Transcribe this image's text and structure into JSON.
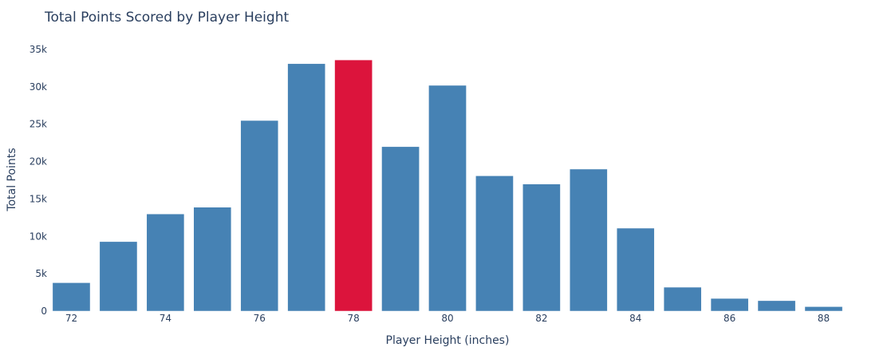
{
  "chart_data": {
    "type": "bar",
    "title": "Total Points Scored by Player Height",
    "xlabel": "Player Height (inches)",
    "ylabel": "Total Points",
    "x": [
      72,
      73,
      74,
      75,
      76,
      77,
      78,
      79,
      80,
      81,
      82,
      83,
      84,
      85,
      86,
      87,
      88
    ],
    "values": [
      3800,
      9300,
      13000,
      13900,
      25500,
      33100,
      33600,
      22000,
      30200,
      18100,
      17000,
      19000,
      11100,
      3200,
      1700,
      1400,
      600
    ],
    "highlight_x": 78,
    "ylim": [
      0,
      35000
    ],
    "y_ticks": [
      0,
      5000,
      10000,
      15000,
      20000,
      25000,
      30000,
      35000
    ],
    "y_tick_labels": [
      "0",
      "5k",
      "10k",
      "15k",
      "20k",
      "25k",
      "30k",
      "35k"
    ],
    "x_ticks": [
      72,
      74,
      76,
      78,
      80,
      82,
      84,
      86,
      88
    ],
    "x_tick_labels": [
      "72",
      "74",
      "76",
      "78",
      "80",
      "82",
      "84",
      "86",
      "88"
    ],
    "grid": false,
    "legend": "none",
    "colors": {
      "bar": "#4682b4",
      "highlight": "#dc143c",
      "text": "#2a3f5f"
    }
  }
}
